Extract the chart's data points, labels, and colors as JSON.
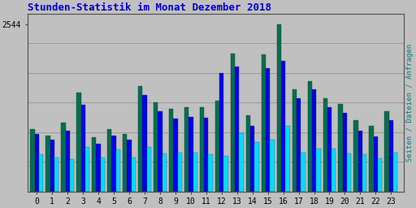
{
  "title": "Stunden-Statistik im Monat Dezember 2018",
  "ylabel_right": "Seiten / Dateien / Anfragen",
  "xlabel_vals": [
    "0",
    "1",
    "2",
    "3",
    "4",
    "5",
    "6",
    "7",
    "8",
    "9",
    "10",
    "11",
    "12",
    "13",
    "14",
    "15",
    "16",
    "17",
    "18",
    "19",
    "20",
    "21",
    "22",
    "23"
  ],
  "ytick_label": "2544",
  "ytick_val": 2544,
  "ymax": 2700,
  "background_color": "#c0c0c0",
  "plot_bg_color": "#c0c0c0",
  "title_color": "#0000cc",
  "ylabel_color": "#008080",
  "grid_color": "#999999",
  "bar_width": 0.28,
  "colors": {
    "seiten": "#007050",
    "dateien": "#0000ee",
    "anfragen": "#00ddff"
  },
  "seiten": [
    950,
    850,
    1050,
    1500,
    820,
    950,
    870,
    1600,
    1350,
    1250,
    1280,
    1280,
    1380,
    2100,
    1150,
    2080,
    2544,
    1550,
    1680,
    1420,
    1330,
    1080,
    990,
    1220
  ],
  "dateien": [
    870,
    780,
    920,
    1320,
    720,
    850,
    780,
    1460,
    1220,
    1110,
    1130,
    1120,
    1800,
    1900,
    1000,
    1870,
    1980,
    1420,
    1550,
    1280,
    1190,
    920,
    840,
    1080
  ],
  "anfragen": [
    560,
    510,
    490,
    670,
    510,
    640,
    510,
    680,
    580,
    590,
    590,
    560,
    540,
    880,
    750,
    780,
    1000,
    590,
    650,
    650,
    570,
    560,
    500,
    590
  ]
}
